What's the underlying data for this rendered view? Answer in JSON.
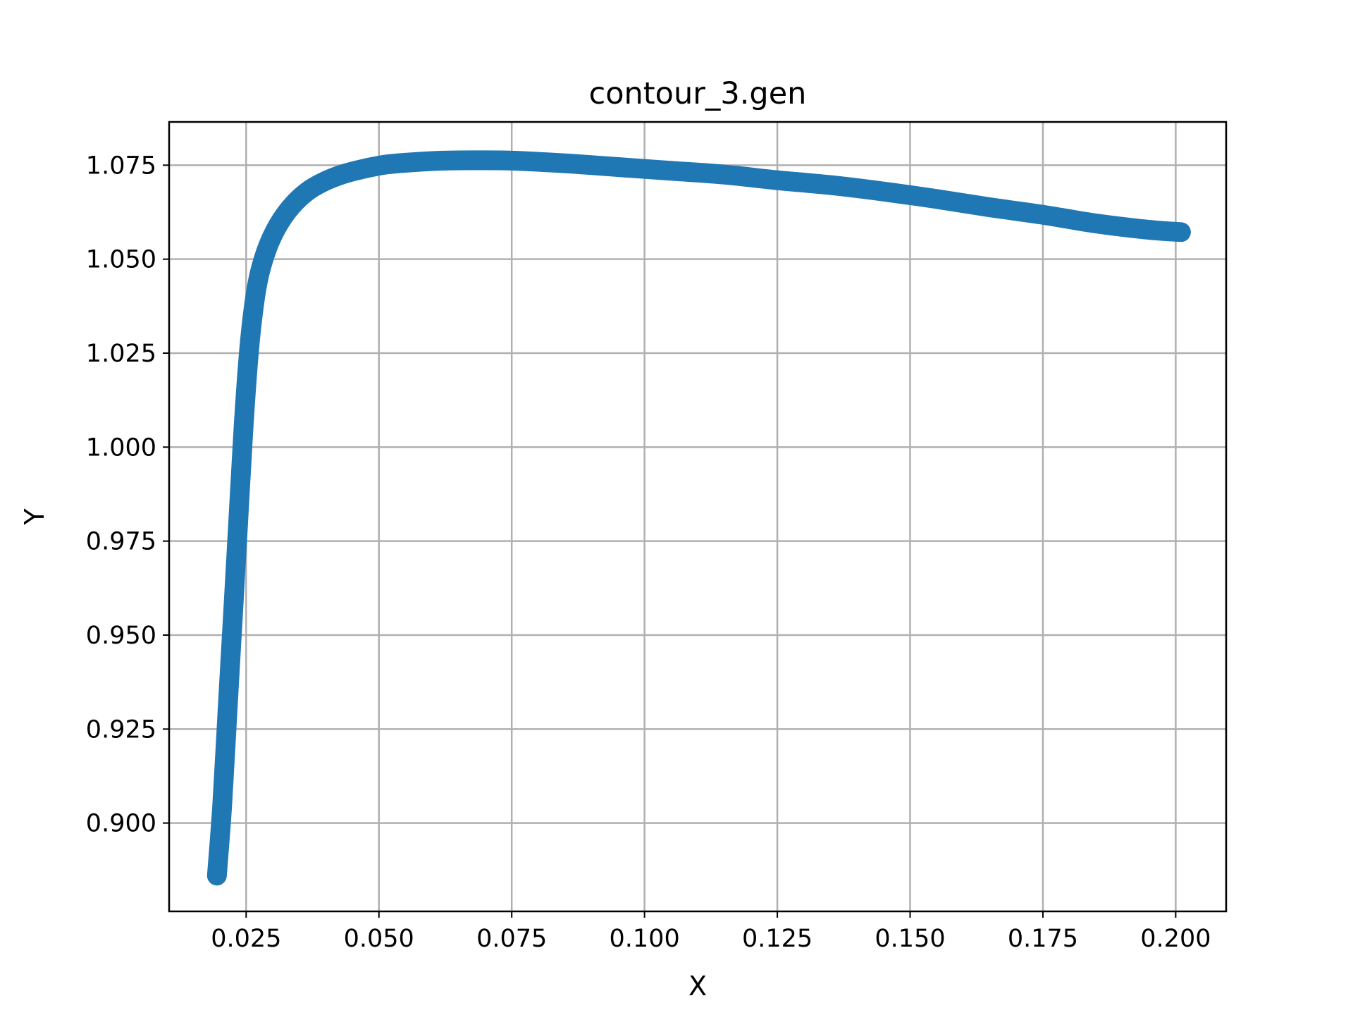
{
  "chart_data": {
    "type": "line",
    "title": "contour_3.gen",
    "xlabel": "X",
    "ylabel": "Y",
    "xlim": [
      0.0105,
      0.2095
    ],
    "ylim": [
      0.8765,
      1.0865
    ],
    "grid": true,
    "xticks": [
      0.025,
      0.05,
      0.075,
      0.1,
      0.125,
      0.15,
      0.175,
      0.2
    ],
    "xtick_labels": [
      "0.025",
      "0.050",
      "0.075",
      "0.100",
      "0.125",
      "0.150",
      "0.175",
      "0.200"
    ],
    "yticks": [
      0.9,
      0.925,
      0.95,
      0.975,
      1.0,
      1.025,
      1.05,
      1.075
    ],
    "ytick_labels": [
      "0.900",
      "0.925",
      "0.950",
      "0.975",
      "1.000",
      "1.025",
      "1.050",
      "1.075"
    ],
    "series": [
      {
        "color": "#1f77b4",
        "x": [
          0.0195,
          0.0205,
          0.0215,
          0.0225,
          0.0235,
          0.0245,
          0.0255,
          0.0265,
          0.0275,
          0.029,
          0.031,
          0.0335,
          0.0365,
          0.0395,
          0.043,
          0.047,
          0.0515,
          0.0565,
          0.062,
          0.068,
          0.075,
          0.085,
          0.095,
          0.105,
          0.115,
          0.125,
          0.135,
          0.145,
          0.155,
          0.165,
          0.175,
          0.185,
          0.195,
          0.201
        ],
        "y": [
          0.886,
          0.905,
          0.93,
          0.955,
          0.98,
          1.005,
          1.025,
          1.038,
          1.046,
          1.053,
          1.059,
          1.064,
          1.068,
          1.0705,
          1.0725,
          1.074,
          1.0752,
          1.0758,
          1.0762,
          1.0763,
          1.0762,
          1.0755,
          1.0745,
          1.0735,
          1.0725,
          1.071,
          1.0697,
          1.068,
          1.066,
          1.0638,
          1.0618,
          1.0595,
          1.0578,
          1.0572
        ]
      }
    ]
  }
}
